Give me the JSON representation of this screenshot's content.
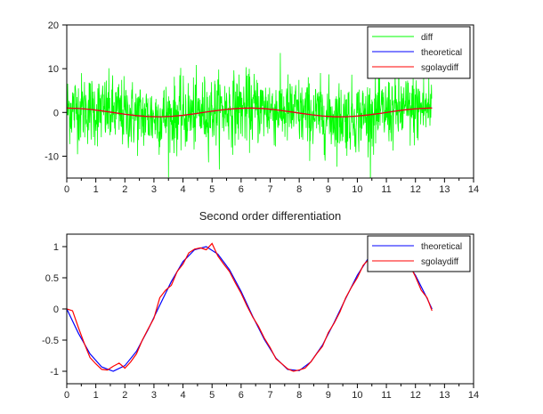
{
  "chart_data": [
    {
      "type": "line",
      "title": "",
      "xlim": [
        0,
        14
      ],
      "ylim": [
        -15,
        20
      ],
      "xticks": [
        "0",
        "1",
        "2",
        "3",
        "4",
        "5",
        "6",
        "7",
        "8",
        "9",
        "10",
        "11",
        "12",
        "13",
        "14"
      ],
      "yticks": [
        "-10",
        "0",
        "10",
        "20"
      ],
      "legend_position": "top-right",
      "series": [
        {
          "name": "diff",
          "color": "#00ff00",
          "noise_amplitude": 4
        },
        {
          "name": "theoretical",
          "color": "#0000ff",
          "x": [
            0,
            0.4,
            0.8,
            1.2,
            1.6,
            2.0,
            2.4,
            2.8,
            3.2,
            3.6,
            4.0,
            4.4,
            4.8,
            5.2,
            5.6,
            6.0,
            6.4,
            6.8,
            7.2,
            7.6,
            8.0,
            8.4,
            8.8,
            9.2,
            9.6,
            10.0,
            10.4,
            10.8,
            11.2,
            11.6,
            12.0,
            12.4,
            12.57
          ],
          "y": [
            1,
            0.92,
            0.7,
            0.36,
            -0.03,
            -0.42,
            -0.74,
            -0.94,
            -1.0,
            -0.9,
            -0.65,
            -0.31,
            0.09,
            0.47,
            0.78,
            0.96,
            0.99,
            0.87,
            0.61,
            0.25,
            -0.15,
            -0.52,
            -0.81,
            -0.97,
            -0.99,
            -0.84,
            -0.56,
            -0.2,
            0.2,
            0.57,
            0.84,
            0.98,
            1.0
          ]
        },
        {
          "name": "sgolaydiff",
          "color": "#ff0000",
          "x": [
            0,
            0.4,
            0.8,
            1.2,
            1.6,
            2.0,
            2.4,
            2.8,
            3.2,
            3.6,
            4.0,
            4.4,
            4.8,
            5.2,
            5.6,
            6.0,
            6.4,
            6.8,
            7.2,
            7.6,
            8.0,
            8.4,
            8.8,
            9.2,
            9.6,
            10.0,
            10.4,
            10.8,
            11.2,
            11.6,
            12.0,
            12.4,
            12.57
          ],
          "y": [
            1,
            0.92,
            0.7,
            0.36,
            -0.03,
            -0.42,
            -0.74,
            -0.94,
            -1.0,
            -0.9,
            -0.65,
            -0.31,
            0.09,
            0.47,
            0.78,
            0.96,
            0.99,
            0.87,
            0.61,
            0.25,
            -0.15,
            -0.52,
            -0.81,
            -0.97,
            -0.99,
            -0.84,
            -0.56,
            -0.2,
            0.2,
            0.57,
            0.84,
            0.98,
            1.0
          ]
        }
      ]
    },
    {
      "type": "line",
      "title": "Second order differentiation",
      "xlim": [
        0,
        14
      ],
      "ylim": [
        -1.2,
        1.2
      ],
      "xticks": [
        "0",
        "1",
        "2",
        "3",
        "4",
        "5",
        "6",
        "7",
        "8",
        "9",
        "10",
        "11",
        "12",
        "13",
        "14"
      ],
      "yticks": [
        "-1",
        "-0.5",
        "0",
        "0.5",
        "1"
      ],
      "legend_position": "top-right",
      "series": [
        {
          "name": "theoretical",
          "color": "#0000ff",
          "x": [
            0,
            0.4,
            0.8,
            1.2,
            1.6,
            2.0,
            2.4,
            2.8,
            3.2,
            3.6,
            4.0,
            4.4,
            4.8,
            5.2,
            5.6,
            6.0,
            6.4,
            6.8,
            7.2,
            7.6,
            8.0,
            8.4,
            8.8,
            9.2,
            9.6,
            10.0,
            10.4,
            10.8,
            11.2,
            11.6,
            12.0,
            12.4,
            12.57
          ],
          "y": [
            0,
            -0.39,
            -0.72,
            -0.93,
            -1.0,
            -0.91,
            -0.68,
            -0.33,
            0.06,
            0.44,
            0.76,
            0.95,
            1.0,
            0.88,
            0.63,
            0.28,
            -0.12,
            -0.49,
            -0.79,
            -0.97,
            -0.99,
            -0.85,
            -0.58,
            -0.22,
            0.17,
            0.54,
            0.83,
            0.98,
            0.98,
            0.82,
            0.54,
            0.17,
            0
          ]
        },
        {
          "name": "sgolaydiff",
          "color": "#ff0000",
          "x": [
            0,
            0.2,
            0.4,
            0.6,
            0.8,
            1.0,
            1.2,
            1.4,
            1.6,
            1.8,
            2.0,
            2.2,
            2.4,
            2.6,
            2.8,
            3.0,
            3.2,
            3.4,
            3.6,
            3.8,
            4.0,
            4.2,
            4.4,
            4.6,
            4.8,
            5.0,
            5.2,
            5.4,
            5.6,
            5.8,
            6.0,
            6.2,
            6.4,
            6.6,
            6.8,
            7.0,
            7.2,
            7.4,
            7.6,
            7.8,
            8.0,
            8.2,
            8.4,
            8.6,
            8.8,
            9.0,
            9.2,
            9.4,
            9.6,
            9.8,
            10.0,
            10.2,
            10.4,
            10.6,
            10.8,
            11.0,
            11.2,
            11.4,
            11.6,
            11.8,
            12.0,
            12.2,
            12.4,
            12.57
          ],
          "y": [
            0,
            -0.03,
            -0.3,
            -0.55,
            -0.78,
            -0.88,
            -0.97,
            -0.98,
            -0.92,
            -0.87,
            -0.95,
            -0.85,
            -0.72,
            -0.5,
            -0.32,
            -0.15,
            0.18,
            0.3,
            0.38,
            0.6,
            0.72,
            0.9,
            0.96,
            0.98,
            0.95,
            1.05,
            0.85,
            0.72,
            0.6,
            0.42,
            0.25,
            0.05,
            -0.13,
            -0.28,
            -0.47,
            -0.62,
            -0.8,
            -0.88,
            -0.96,
            -1.0,
            -0.98,
            -0.95,
            -0.85,
            -0.72,
            -0.6,
            -0.38,
            -0.23,
            -0.05,
            0.18,
            0.35,
            0.5,
            0.7,
            0.8,
            0.95,
            1.02,
            0.95,
            0.98,
            0.92,
            0.8,
            0.7,
            0.52,
            0.3,
            0.18,
            -0.03
          ]
        }
      ]
    }
  ]
}
